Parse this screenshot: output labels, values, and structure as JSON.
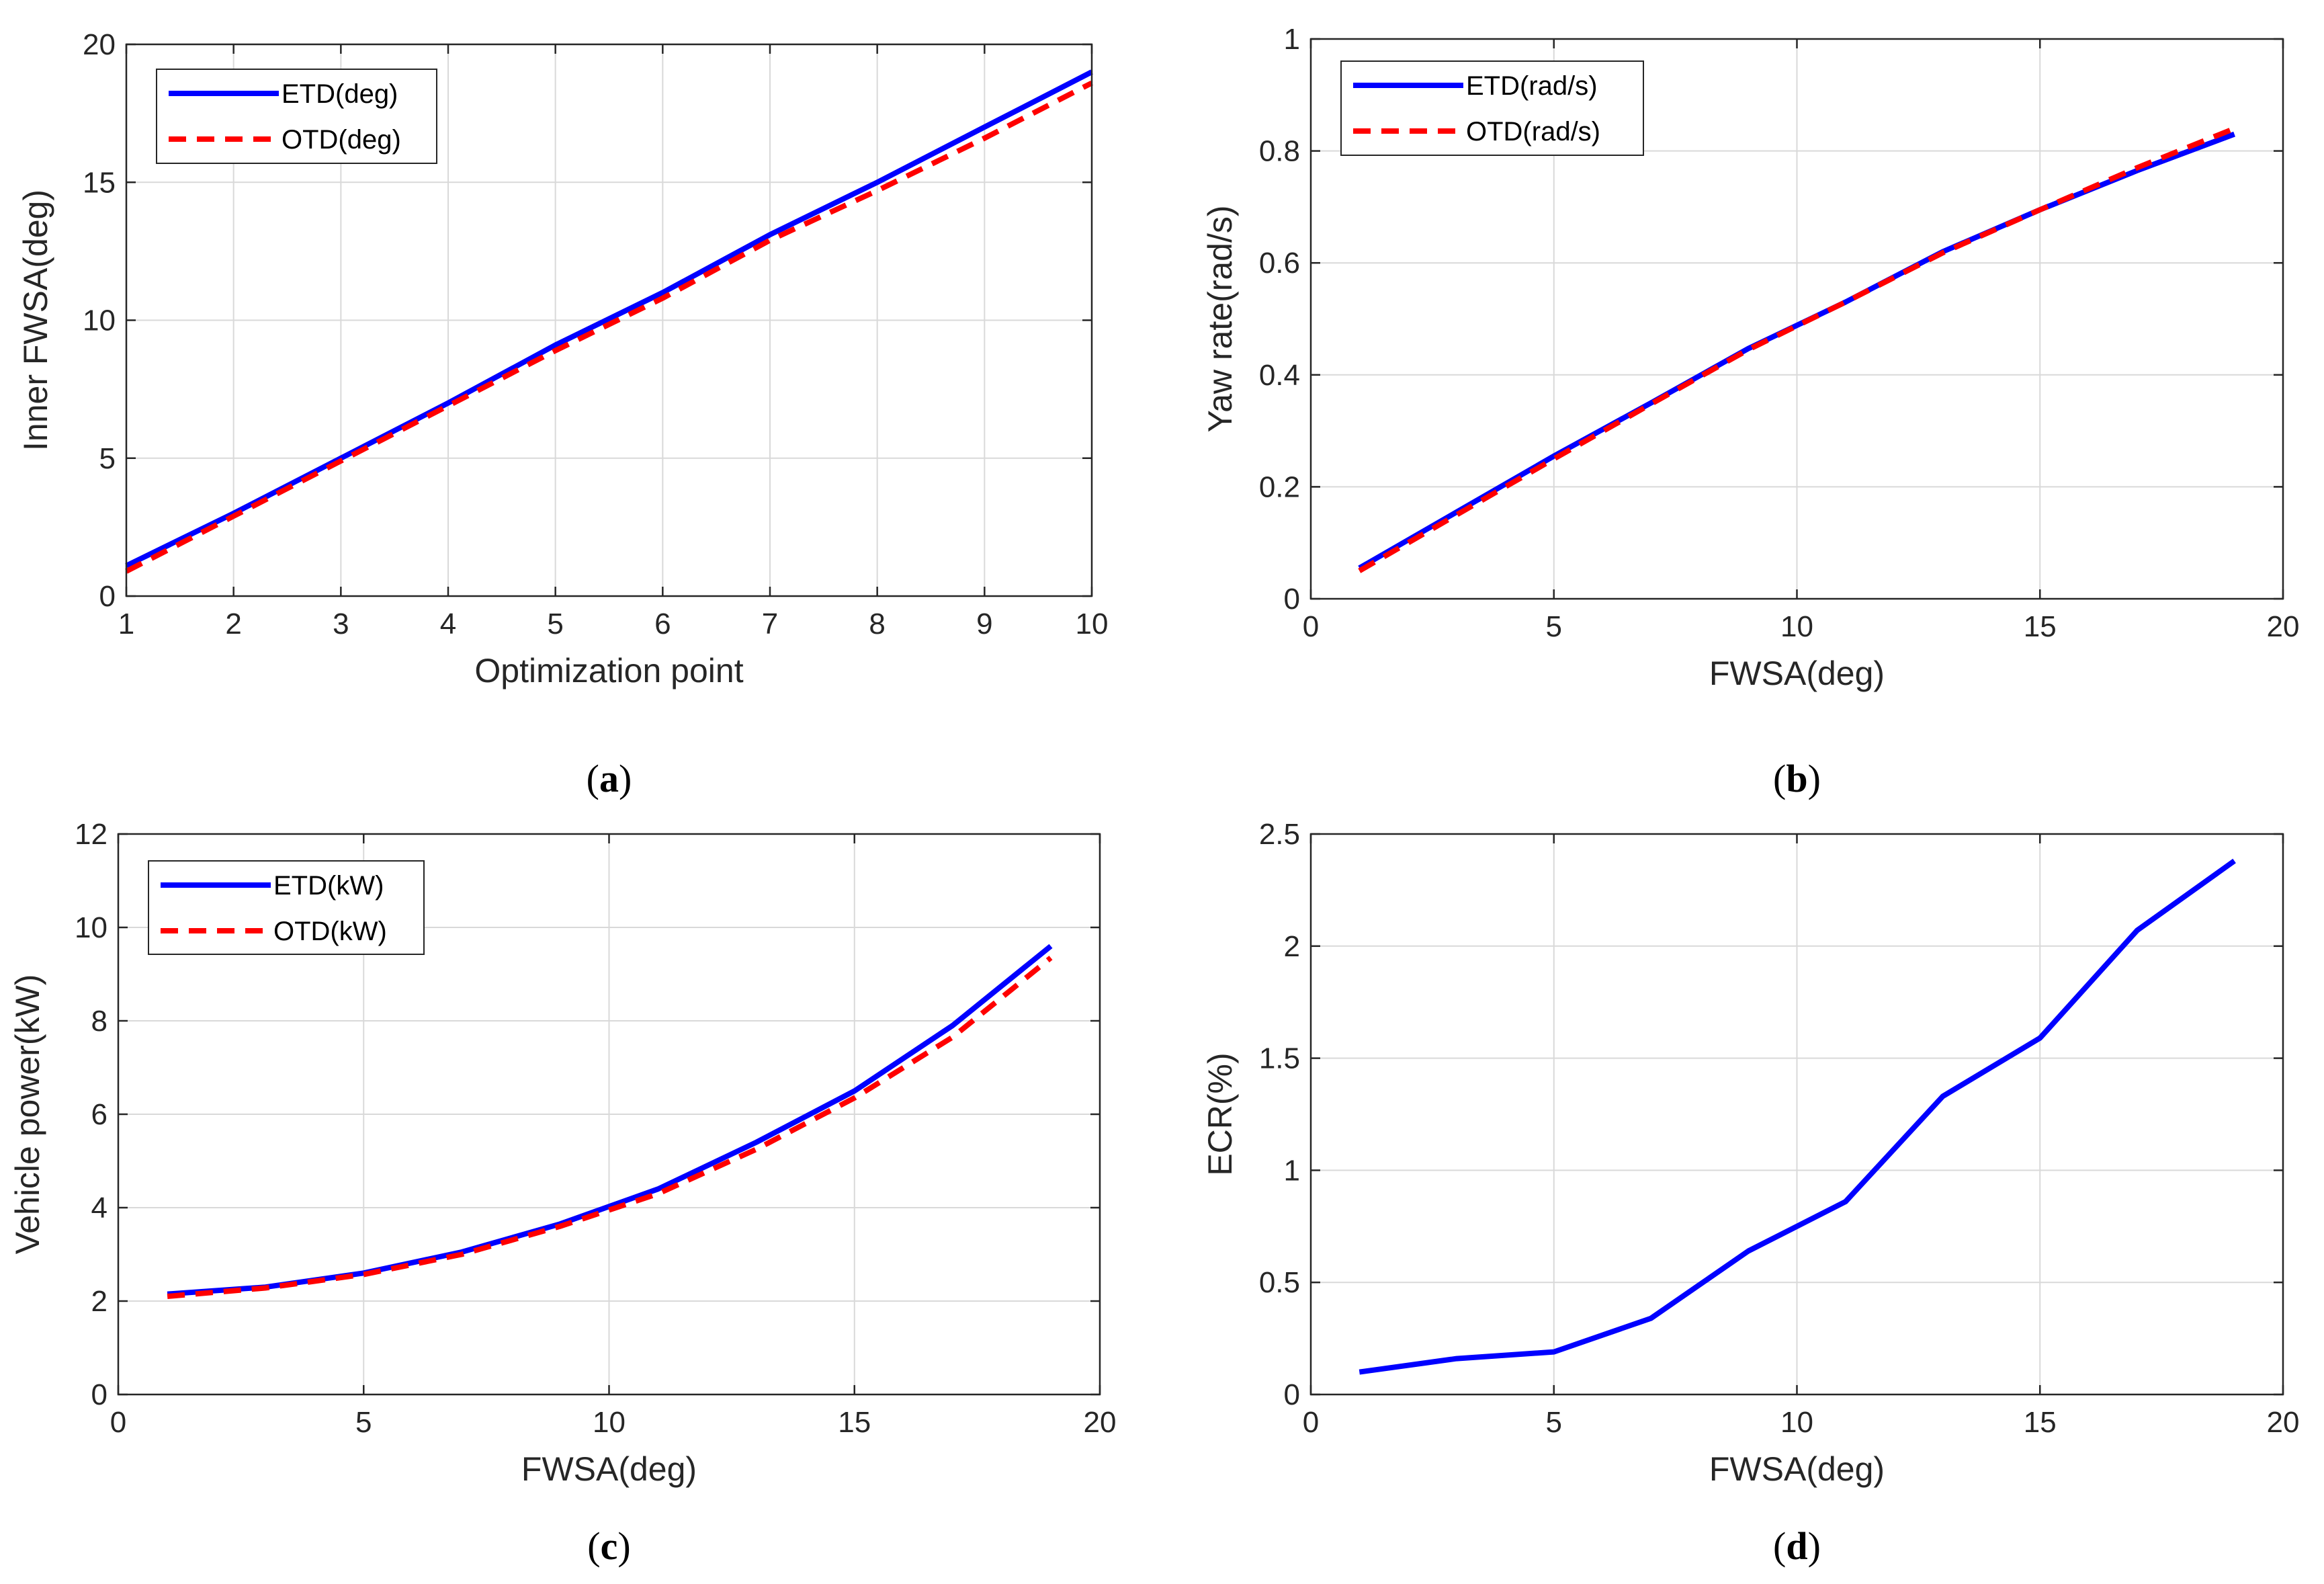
{
  "colors": {
    "etd": "#0000ff",
    "otd": "#ff0000",
    "grid": "#d9d9d9",
    "axis": "#262626"
  },
  "chart_data": [
    {
      "id": "a",
      "type": "line",
      "caption": {
        "open": "(",
        "letter": "a",
        "close": ")"
      },
      "xlabel": "Optimization point",
      "ylabel": "Inner FWSA(deg)",
      "xlim": [
        1,
        10
      ],
      "ylim": [
        0,
        20
      ],
      "xticks": [
        1,
        2,
        3,
        4,
        5,
        6,
        7,
        8,
        9,
        10
      ],
      "yticks": [
        0,
        5,
        10,
        15,
        20
      ],
      "grid": true,
      "legend": "top-left",
      "series": [
        {
          "name": "ETD(deg)",
          "style": "solid",
          "color": "#0000ff",
          "x": [
            1,
            2,
            3,
            4,
            5,
            6,
            7,
            8,
            9,
            10
          ],
          "y": [
            1.1,
            3.0,
            5.0,
            7.0,
            9.1,
            11.0,
            13.1,
            15.0,
            17.0,
            19.0
          ]
        },
        {
          "name": "OTD(deg)",
          "style": "dashed",
          "color": "#ff0000",
          "x": [
            1,
            2,
            3,
            4,
            5,
            6,
            7,
            8,
            9,
            10
          ],
          "y": [
            0.9,
            2.9,
            4.9,
            6.9,
            8.9,
            10.8,
            12.9,
            14.7,
            16.6,
            18.6
          ]
        }
      ]
    },
    {
      "id": "b",
      "type": "line",
      "caption": {
        "open": "(",
        "letter": "b",
        "close": ")"
      },
      "xlabel": "FWSA(deg)",
      "ylabel": "Yaw rate(rad/s)",
      "xlim": [
        0,
        20
      ],
      "ylim": [
        0,
        1
      ],
      "xticks": [
        0,
        5,
        10,
        15,
        20
      ],
      "yticks": [
        0,
        0.2,
        0.4,
        0.6,
        0.8,
        1
      ],
      "grid": true,
      "legend": "top-left",
      "series": [
        {
          "name": "ETD(rad/s)",
          "style": "solid",
          "color": "#0000ff",
          "x": [
            1,
            3,
            5,
            7,
            9,
            11,
            13,
            15,
            17,
            19
          ],
          "y": [
            0.055,
            0.155,
            0.255,
            0.35,
            0.447,
            0.53,
            0.62,
            0.695,
            0.765,
            0.83
          ]
        },
        {
          "name": "OTD(rad/s)",
          "style": "dashed",
          "color": "#ff0000",
          "x": [
            1,
            3,
            5,
            7,
            9,
            11,
            13,
            15,
            17,
            19
          ],
          "y": [
            0.05,
            0.15,
            0.25,
            0.348,
            0.445,
            0.53,
            0.618,
            0.695,
            0.77,
            0.84
          ]
        }
      ]
    },
    {
      "id": "c",
      "type": "line",
      "caption": {
        "open": "(",
        "letter": "c",
        "close": ")"
      },
      "xlabel": "FWSA(deg)",
      "ylabel": "Vehicle power(kW)",
      "xlim": [
        0,
        20
      ],
      "ylim": [
        0,
        12
      ],
      "xticks": [
        0,
        5,
        10,
        15,
        20
      ],
      "yticks": [
        0,
        2,
        4,
        6,
        8,
        10,
        12
      ],
      "grid": true,
      "legend": "top-left",
      "series": [
        {
          "name": "ETD(kW)",
          "style": "solid",
          "color": "#0000ff",
          "x": [
            1,
            3,
            5,
            7,
            9,
            11,
            13,
            15,
            17,
            19
          ],
          "y": [
            2.15,
            2.3,
            2.6,
            3.05,
            3.65,
            4.4,
            5.4,
            6.5,
            7.9,
            9.6
          ]
        },
        {
          "name": "OTD(kW)",
          "style": "dashed",
          "color": "#ff0000",
          "x": [
            1,
            3,
            5,
            7,
            9,
            11,
            13,
            15,
            17,
            19
          ],
          "y": [
            2.1,
            2.28,
            2.57,
            3.0,
            3.6,
            4.3,
            5.25,
            6.35,
            7.65,
            9.35
          ]
        }
      ]
    },
    {
      "id": "d",
      "type": "line",
      "caption": {
        "open": "(",
        "letter": "d",
        "close": ")"
      },
      "xlabel": "FWSA(deg)",
      "ylabel": "ECR(%)",
      "xlim": [
        0,
        20
      ],
      "ylim": [
        0,
        2.5
      ],
      "xticks": [
        0,
        5,
        10,
        15,
        20
      ],
      "yticks": [
        0,
        0.5,
        1,
        1.5,
        2,
        2.5
      ],
      "grid": true,
      "legend": "none",
      "series": [
        {
          "style": "solid",
          "color": "#0000ff",
          "x": [
            1,
            3,
            5,
            7,
            9,
            11,
            13,
            15,
            17,
            19
          ],
          "y": [
            0.1,
            0.16,
            0.19,
            0.34,
            0.64,
            0.86,
            1.33,
            1.59,
            2.07,
            2.38
          ]
        }
      ]
    }
  ]
}
